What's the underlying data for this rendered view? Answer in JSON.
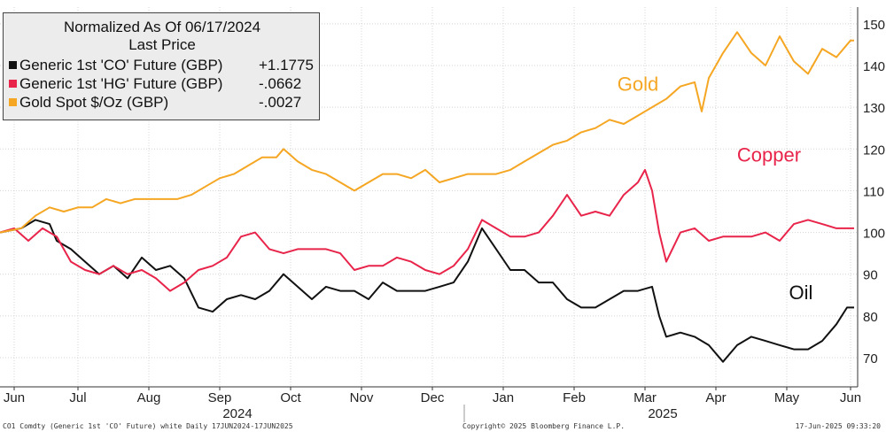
{
  "chart_data": {
    "type": "line",
    "title": "Normalized As Of 06/17/2024",
    "subtitle": "Last Price",
    "ylim": [
      63,
      154
    ],
    "y_ticks": [
      70,
      80,
      90,
      100,
      110,
      120,
      130,
      140,
      150
    ],
    "x_range": [
      0,
      12.1
    ],
    "x_ticks": [
      {
        "label": "Jun",
        "x": 0.2
      },
      {
        "label": "Jul",
        "x": 1.1
      },
      {
        "label": "Aug",
        "x": 2.1
      },
      {
        "label": "Sep",
        "x": 3.1
      },
      {
        "label": "Oct",
        "x": 4.1
      },
      {
        "label": "Nov",
        "x": 5.1
      },
      {
        "label": "Dec",
        "x": 6.1
      },
      {
        "label": "Jan",
        "x": 7.1
      },
      {
        "label": "Feb",
        "x": 8.1
      },
      {
        "label": "Mar",
        "x": 9.1
      },
      {
        "label": "Apr",
        "x": 10.1
      },
      {
        "label": "May",
        "x": 11.1
      },
      {
        "label": "Jun",
        "x": 12.0
      }
    ],
    "year_labels": [
      {
        "label": "2024",
        "x": 3.35
      },
      {
        "label": "2025",
        "x": 9.35
      }
    ],
    "year_divider_x": 6.55,
    "series": [
      {
        "name": "Generic 1st 'CO' Future (GBP)",
        "legend_value": "+1.1775",
        "color": "#111111",
        "end_label": "Oil",
        "points": [
          [
            0,
            100
          ],
          [
            0.3,
            101
          ],
          [
            0.5,
            103
          ],
          [
            0.7,
            102
          ],
          [
            0.8,
            98
          ],
          [
            1.0,
            96
          ],
          [
            1.2,
            93
          ],
          [
            1.4,
            90
          ],
          [
            1.6,
            92
          ],
          [
            1.8,
            89
          ],
          [
            2.0,
            94
          ],
          [
            2.2,
            91
          ],
          [
            2.4,
            92
          ],
          [
            2.6,
            89
          ],
          [
            2.8,
            82
          ],
          [
            3.0,
            81
          ],
          [
            3.2,
            84
          ],
          [
            3.4,
            85
          ],
          [
            3.6,
            84
          ],
          [
            3.8,
            86
          ],
          [
            4.0,
            90
          ],
          [
            4.2,
            87
          ],
          [
            4.4,
            84
          ],
          [
            4.6,
            87
          ],
          [
            4.8,
            86
          ],
          [
            5.0,
            86
          ],
          [
            5.2,
            84
          ],
          [
            5.4,
            88
          ],
          [
            5.6,
            86
          ],
          [
            5.8,
            86
          ],
          [
            6.0,
            86
          ],
          [
            6.2,
            87
          ],
          [
            6.4,
            88
          ],
          [
            6.6,
            93
          ],
          [
            6.8,
            101
          ],
          [
            7.0,
            96
          ],
          [
            7.2,
            91
          ],
          [
            7.4,
            91
          ],
          [
            7.6,
            88
          ],
          [
            7.8,
            88
          ],
          [
            8.0,
            84
          ],
          [
            8.2,
            82
          ],
          [
            8.4,
            82
          ],
          [
            8.6,
            84
          ],
          [
            8.8,
            86
          ],
          [
            9.0,
            86
          ],
          [
            9.2,
            87
          ],
          [
            9.3,
            80
          ],
          [
            9.4,
            75
          ],
          [
            9.6,
            76
          ],
          [
            9.8,
            75
          ],
          [
            10.0,
            73
          ],
          [
            10.2,
            69
          ],
          [
            10.4,
            73
          ],
          [
            10.6,
            75
          ],
          [
            10.8,
            74
          ],
          [
            11.0,
            73
          ],
          [
            11.2,
            72
          ],
          [
            11.4,
            72
          ],
          [
            11.6,
            74
          ],
          [
            11.8,
            78
          ],
          [
            11.95,
            82
          ],
          [
            12.05,
            82
          ]
        ]
      },
      {
        "name": "Generic 1st 'HG' Future (GBP)",
        "legend_value": "-.0662",
        "color": "#e8244a",
        "end_label": "Copper",
        "points": [
          [
            0,
            100
          ],
          [
            0.2,
            101
          ],
          [
            0.4,
            98
          ],
          [
            0.6,
            101
          ],
          [
            0.8,
            99
          ],
          [
            1.0,
            93
          ],
          [
            1.2,
            91
          ],
          [
            1.4,
            90
          ],
          [
            1.6,
            92
          ],
          [
            1.8,
            90
          ],
          [
            2.0,
            91
          ],
          [
            2.2,
            89
          ],
          [
            2.4,
            86
          ],
          [
            2.6,
            88
          ],
          [
            2.8,
            91
          ],
          [
            3.0,
            92
          ],
          [
            3.2,
            94
          ],
          [
            3.4,
            99
          ],
          [
            3.6,
            100
          ],
          [
            3.8,
            96
          ],
          [
            4.0,
            95
          ],
          [
            4.2,
            96
          ],
          [
            4.4,
            96
          ],
          [
            4.6,
            96
          ],
          [
            4.8,
            95
          ],
          [
            5.0,
            91
          ],
          [
            5.2,
            92
          ],
          [
            5.4,
            92
          ],
          [
            5.6,
            94
          ],
          [
            5.8,
            93
          ],
          [
            6.0,
            91
          ],
          [
            6.2,
            90
          ],
          [
            6.4,
            92
          ],
          [
            6.6,
            96
          ],
          [
            6.8,
            103
          ],
          [
            7.0,
            101
          ],
          [
            7.2,
            99
          ],
          [
            7.4,
            99
          ],
          [
            7.6,
            100
          ],
          [
            7.8,
            104
          ],
          [
            8.0,
            109
          ],
          [
            8.2,
            104
          ],
          [
            8.4,
            105
          ],
          [
            8.6,
            104
          ],
          [
            8.8,
            109
          ],
          [
            9.0,
            112
          ],
          [
            9.1,
            115
          ],
          [
            9.2,
            110
          ],
          [
            9.3,
            100
          ],
          [
            9.4,
            93
          ],
          [
            9.6,
            100
          ],
          [
            9.8,
            101
          ],
          [
            10.0,
            98
          ],
          [
            10.2,
            99
          ],
          [
            10.4,
            99
          ],
          [
            10.6,
            99
          ],
          [
            10.8,
            100
          ],
          [
            11.0,
            98
          ],
          [
            11.2,
            102
          ],
          [
            11.4,
            103
          ],
          [
            11.6,
            102
          ],
          [
            11.8,
            101
          ],
          [
            12.05,
            101
          ]
        ]
      },
      {
        "name": "Gold Spot $/Oz (GBP)",
        "legend_value": "-.0027",
        "color": "#f5a623",
        "end_label": "Gold",
        "points": [
          [
            0,
            100
          ],
          [
            0.3,
            101
          ],
          [
            0.5,
            104
          ],
          [
            0.7,
            106
          ],
          [
            0.9,
            105
          ],
          [
            1.1,
            106
          ],
          [
            1.3,
            106
          ],
          [
            1.5,
            108
          ],
          [
            1.7,
            107
          ],
          [
            1.9,
            108
          ],
          [
            2.1,
            108
          ],
          [
            2.3,
            108
          ],
          [
            2.5,
            108
          ],
          [
            2.7,
            109
          ],
          [
            2.9,
            111
          ],
          [
            3.1,
            113
          ],
          [
            3.3,
            114
          ],
          [
            3.5,
            116
          ],
          [
            3.7,
            118
          ],
          [
            3.9,
            118
          ],
          [
            4.0,
            120
          ],
          [
            4.2,
            117
          ],
          [
            4.4,
            115
          ],
          [
            4.6,
            114
          ],
          [
            4.8,
            112
          ],
          [
            5.0,
            110
          ],
          [
            5.2,
            112
          ],
          [
            5.4,
            114
          ],
          [
            5.6,
            114
          ],
          [
            5.8,
            113
          ],
          [
            6.0,
            115
          ],
          [
            6.2,
            112
          ],
          [
            6.4,
            113
          ],
          [
            6.6,
            114
          ],
          [
            6.8,
            114
          ],
          [
            7.0,
            114
          ],
          [
            7.2,
            115
          ],
          [
            7.4,
            117
          ],
          [
            7.6,
            119
          ],
          [
            7.8,
            121
          ],
          [
            8.0,
            122
          ],
          [
            8.2,
            124
          ],
          [
            8.4,
            125
          ],
          [
            8.6,
            127
          ],
          [
            8.8,
            126
          ],
          [
            9.0,
            128
          ],
          [
            9.2,
            130
          ],
          [
            9.4,
            132
          ],
          [
            9.6,
            135
          ],
          [
            9.8,
            136
          ],
          [
            9.9,
            129
          ],
          [
            10.0,
            137
          ],
          [
            10.2,
            143
          ],
          [
            10.4,
            148
          ],
          [
            10.6,
            143
          ],
          [
            10.8,
            140
          ],
          [
            11.0,
            147
          ],
          [
            11.2,
            141
          ],
          [
            11.4,
            138
          ],
          [
            11.6,
            144
          ],
          [
            11.8,
            142
          ],
          [
            12.0,
            146
          ],
          [
            12.05,
            146
          ]
        ]
      }
    ],
    "annotations": [
      {
        "text": "Gold",
        "series": 2,
        "x": 9.0,
        "y": 134
      },
      {
        "text": "Copper",
        "series": 1,
        "x": 10.85,
        "y": 117
      },
      {
        "text": "Oil",
        "series": 0,
        "x": 11.3,
        "y": 84
      }
    ]
  },
  "footer": {
    "left": "CO1 Comdty (Generic 1st 'CO' Future) white  Daily 17JUN2024-17JUN2025",
    "center": "Copyright© 2025 Bloomberg Finance L.P.",
    "right": "17-Jun-2025 09:33:20"
  }
}
